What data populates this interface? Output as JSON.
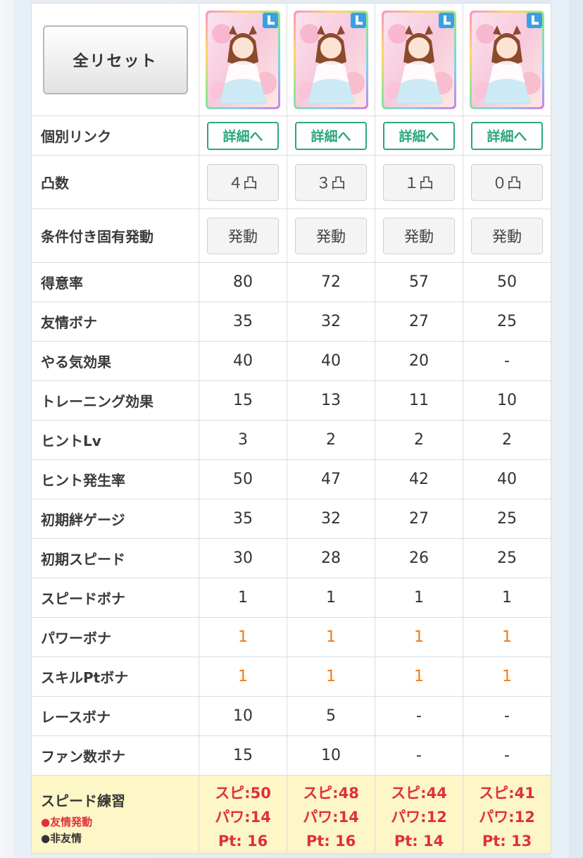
{
  "header": {
    "reset_label": "全リセット"
  },
  "cards": [
    {
      "detail_label": "詳細へ",
      "limit_break": "４凸",
      "unique_label": "発動"
    },
    {
      "detail_label": "詳細へ",
      "limit_break": "３凸",
      "unique_label": "発動"
    },
    {
      "detail_label": "詳細へ",
      "limit_break": "１凸",
      "unique_label": "発動"
    },
    {
      "detail_label": "詳細へ",
      "limit_break": "０凸",
      "unique_label": "発動"
    }
  ],
  "labels": {
    "individual_link": "個別リンク",
    "limit_break": "凸数",
    "conditional_unique": "条件付き固有発動"
  },
  "stats": [
    {
      "label": "得意率",
      "values": [
        "80",
        "72",
        "57",
        "50"
      ],
      "highlight": false
    },
    {
      "label": "友情ボナ",
      "values": [
        "35",
        "32",
        "27",
        "25"
      ],
      "highlight": false
    },
    {
      "label": "やる気効果",
      "values": [
        "40",
        "40",
        "20",
        "-"
      ],
      "highlight": false
    },
    {
      "label": "トレーニング効果",
      "values": [
        "15",
        "13",
        "11",
        "10"
      ],
      "highlight": false
    },
    {
      "label": "ヒントLv",
      "values": [
        "3",
        "2",
        "2",
        "2"
      ],
      "highlight": false
    },
    {
      "label": "ヒント発生率",
      "values": [
        "50",
        "47",
        "42",
        "40"
      ],
      "highlight": false
    },
    {
      "label": "初期絆ゲージ",
      "values": [
        "35",
        "32",
        "27",
        "25"
      ],
      "highlight": false
    },
    {
      "label": "初期スピード",
      "values": [
        "30",
        "28",
        "26",
        "25"
      ],
      "highlight": false
    },
    {
      "label": "スピードボナ",
      "values": [
        "1",
        "1",
        "1",
        "1"
      ],
      "highlight": false
    },
    {
      "label": "パワーボナ",
      "values": [
        "1",
        "1",
        "1",
        "1"
      ],
      "highlight": true
    },
    {
      "label": "スキルPtボナ",
      "values": [
        "1",
        "1",
        "1",
        "1"
      ],
      "highlight": true
    },
    {
      "label": "レースボナ",
      "values": [
        "10",
        "5",
        "-",
        "-"
      ],
      "highlight": false
    },
    {
      "label": "ファン数ボナ",
      "values": [
        "15",
        "10",
        "-",
        "-"
      ],
      "highlight": false
    }
  ],
  "training": {
    "label": "スピード練習",
    "legend_friend": "●友情発動",
    "legend_nonfriend": "●非友情",
    "values": [
      {
        "spd": "スピ:50",
        "pow": "パワ:14",
        "pt": "Pt: 16"
      },
      {
        "spd": "スピ:48",
        "pow": "パワ:14",
        "pt": "Pt: 16"
      },
      {
        "spd": "スピ:44",
        "pow": "パワ:12",
        "pt": "Pt: 14"
      },
      {
        "spd": "スピ:41",
        "pow": "パワ:12",
        "pt": "Pt: 13"
      }
    ]
  },
  "colors": {
    "accent_green": "#2ba57f",
    "highlight_orange": "#f07c12",
    "friend_red": "#e0303a",
    "training_bg": "#fdf6c6"
  }
}
